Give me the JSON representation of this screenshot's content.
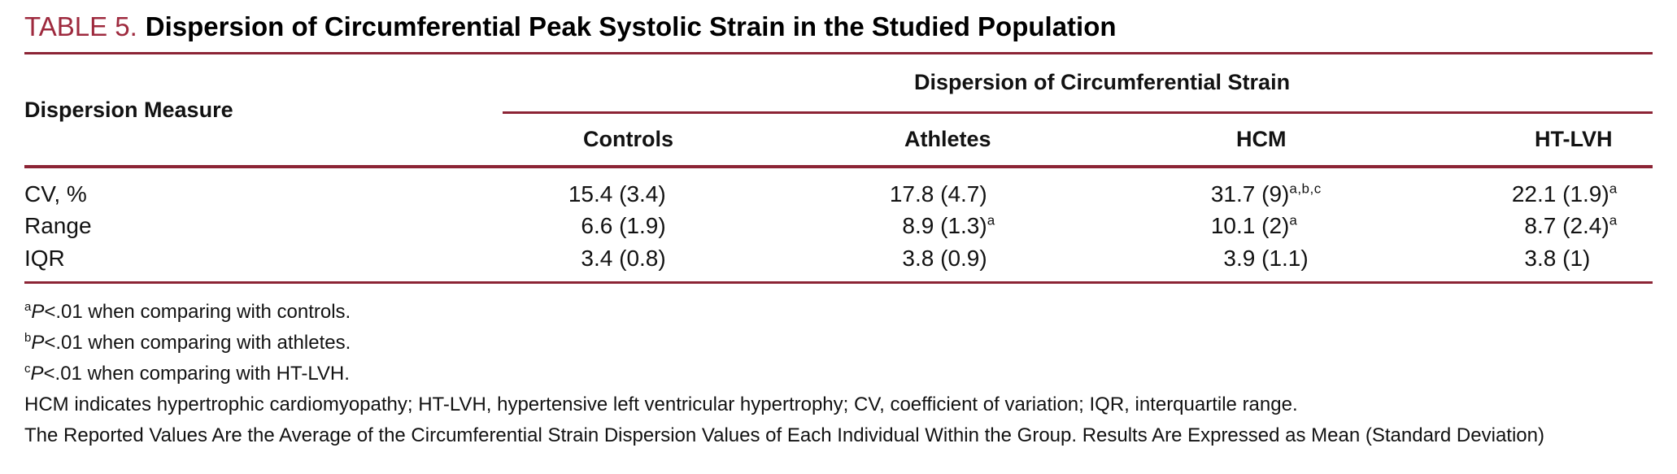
{
  "colors": {
    "accent": "#9E2A3E",
    "rule": "#8C2435",
    "text": "#121212"
  },
  "caption": {
    "label": "TABLE 5.",
    "title": "Dispersion of Circumferential Peak Systolic Strain in the Studied Population"
  },
  "table": {
    "row_header": "Dispersion Measure",
    "group_header": "Dispersion of Circumferential Strain",
    "columns": [
      "Controls",
      "Athletes",
      "HCM",
      "HT-LVH"
    ],
    "rows": [
      {
        "label": "CV, %",
        "cells": [
          {
            "int": "15",
            "rest": ".4 (3.4)",
            "sup": ""
          },
          {
            "int": "17",
            "rest": ".8 (4.7)",
            "sup": ""
          },
          {
            "int": "31",
            "rest": ".7 (9)",
            "sup": "a,b,c"
          },
          {
            "int": "22",
            "rest": ".1 (1.9)",
            "sup": "a"
          }
        ]
      },
      {
        "label": "Range",
        "cells": [
          {
            "int": "6",
            "rest": ".6 (1.9)",
            "sup": ""
          },
          {
            "int": "8",
            "rest": ".9 (1.3)",
            "sup": "a"
          },
          {
            "int": "10",
            "rest": ".1 (2)",
            "sup": "a"
          },
          {
            "int": "8",
            "rest": ".7 (2.4)",
            "sup": "a"
          }
        ]
      },
      {
        "label": "IQR",
        "cells": [
          {
            "int": "3",
            "rest": ".4 (0.8)",
            "sup": ""
          },
          {
            "int": "3",
            "rest": ".8 (0.9)",
            "sup": ""
          },
          {
            "int": "3",
            "rest": ".9 (1.1)",
            "sup": ""
          },
          {
            "int": "3",
            "rest": ".8 (1)",
            "sup": ""
          }
        ]
      }
    ]
  },
  "footnotes": [
    {
      "sup": "a",
      "p": "P",
      "text": "<.01 when comparing with controls."
    },
    {
      "sup": "b",
      "p": "P",
      "text": "<.01 when comparing with athletes."
    },
    {
      "sup": "c",
      "p": "P",
      "text": "<.01 when comparing with HT-LVH."
    },
    {
      "text": "HCM indicates hypertrophic cardiomyopathy; HT-LVH, hypertensive left ventricular hypertrophy; CV, coefficient of variation; IQR, interquartile range."
    },
    {
      "text": "The Reported Values Are the Average of the Circumferential Strain Dispersion Values of Each Individual Within the Group. Results Are Expressed as Mean (Standard Deviation)"
    }
  ]
}
